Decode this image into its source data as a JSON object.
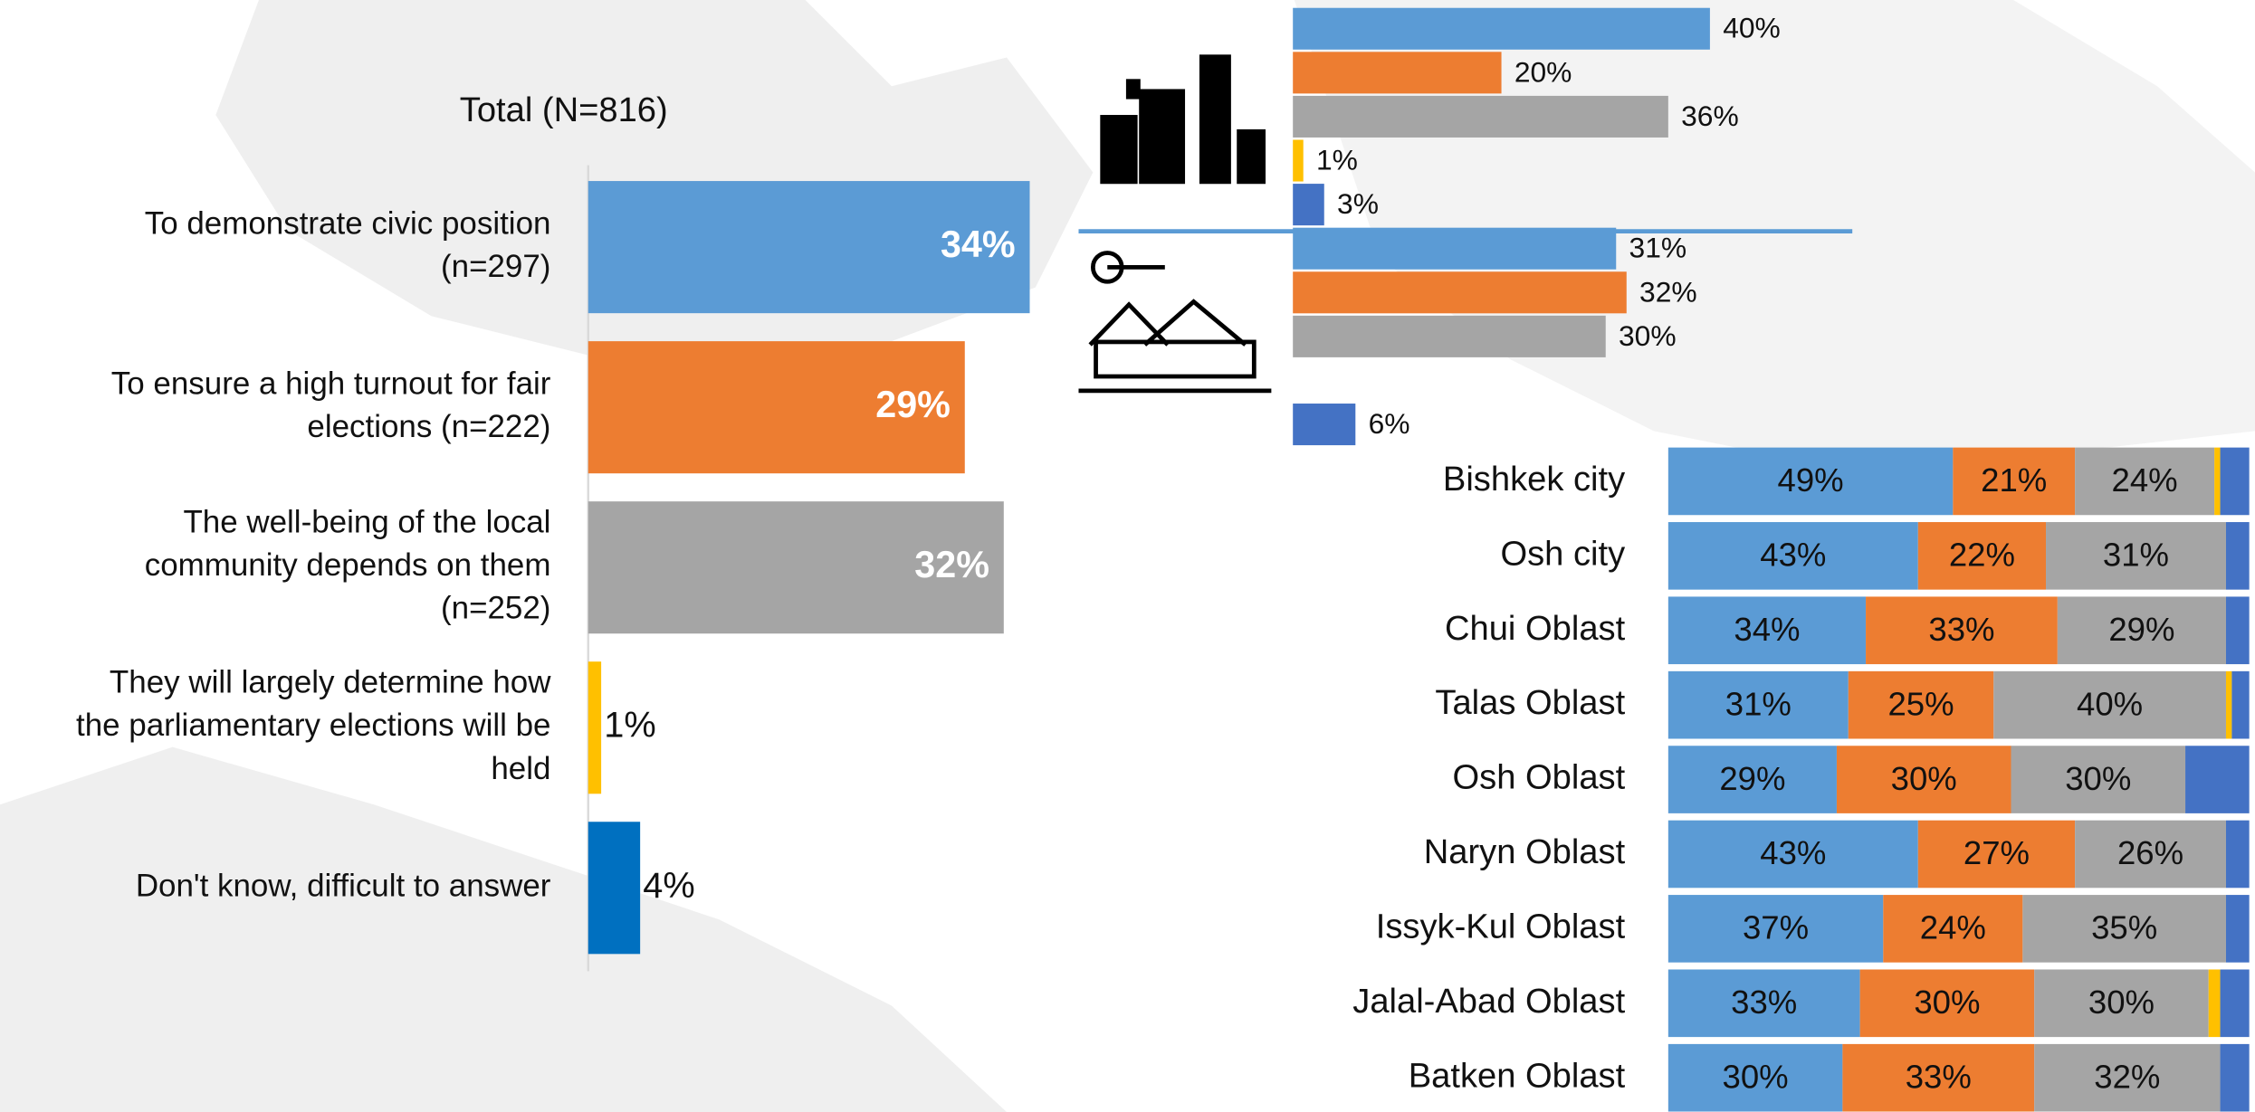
{
  "chart_data": [
    {
      "type": "bar",
      "orientation": "horizontal",
      "title": "Total (N=816)",
      "categories": [
        "To demonstrate civic position\n(n=297)",
        "To ensure a high turnout for fair\nelections (n=222)",
        "The well-being of the local\ncommunity depends on them\n(n=252)",
        "They will largely determine how\nthe parliamentary elections will be\nheld",
        "Don't know, difficult to answer"
      ],
      "values": [
        34,
        29,
        32,
        1,
        4
      ],
      "value_labels": [
        "34%",
        "29%",
        "32%",
        "1%",
        "4%"
      ],
      "colors": [
        "#5b9bd5",
        "#ed7d31",
        "#a5a5a5",
        "#ffc000",
        "#0070c0"
      ],
      "xlim": [
        0,
        100
      ]
    },
    {
      "type": "bar",
      "orientation": "horizontal",
      "xlim": [
        0,
        100
      ],
      "series": [
        {
          "color": "#5b9bd5",
          "values": [
            40,
            31
          ],
          "value_labels": [
            "40%",
            "31%"
          ]
        },
        {
          "color": "#ed7d31",
          "values": [
            20,
            32
          ],
          "value_labels": [
            "20%",
            "32%"
          ]
        },
        {
          "color": "#a5a5a5",
          "values": [
            36,
            30
          ],
          "value_labels": [
            "36%",
            "30%"
          ]
        },
        {
          "color": "#ffc000",
          "values": [
            1,
            null
          ],
          "value_labels": [
            "1%",
            null
          ]
        },
        {
          "color": "#4472c4",
          "values": [
            3,
            6
          ],
          "value_labels": [
            "3%",
            "6%"
          ]
        }
      ]
    },
    {
      "type": "stacked_bar",
      "orientation": "horizontal",
      "xlim": [
        0,
        100
      ],
      "categories": [
        "Bishkek city",
        "Osh city",
        "Chui Oblast",
        "Talas Oblast",
        "Osh Oblast",
        "Naryn Oblast",
        "Issyk-Kul Oblast",
        "Jalal-Abad Oblast",
        "Batken Oblast"
      ],
      "series": [
        {
          "color": "#5b9bd5",
          "values": [
            49,
            43,
            34,
            31,
            29,
            43,
            37,
            33,
            30
          ],
          "value_labels": [
            "49%",
            "43%",
            "34%",
            "31%",
            "29%",
            "43%",
            "37%",
            "33%",
            "30%"
          ]
        },
        {
          "color": "#ed7d31",
          "values": [
            21,
            22,
            33,
            25,
            30,
            27,
            24,
            30,
            33
          ],
          "value_labels": [
            "21%",
            "22%",
            "33%",
            "25%",
            "30%",
            "27%",
            "24%",
            "30%",
            "33%"
          ]
        },
        {
          "color": "#a5a5a5",
          "values": [
            24,
            31,
            29,
            40,
            30,
            26,
            35,
            30,
            32
          ],
          "value_labels": [
            "24%",
            "31%",
            "29%",
            "40%",
            "30%",
            "26%",
            "35%",
            "30%",
            "32%"
          ]
        },
        {
          "color": "#ffc000",
          "values": [
            1,
            0,
            0,
            1,
            0,
            0,
            0,
            2,
            0
          ],
          "value_labels": [
            null,
            null,
            null,
            null,
            null,
            null,
            null,
            null,
            null
          ]
        },
        {
          "color": "#4472c4",
          "values": [
            5,
            4,
            4,
            3,
            11,
            4,
            4,
            5,
            5
          ],
          "value_labels": [
            null,
            null,
            null,
            null,
            null,
            null,
            null,
            null,
            null
          ]
        }
      ]
    }
  ]
}
